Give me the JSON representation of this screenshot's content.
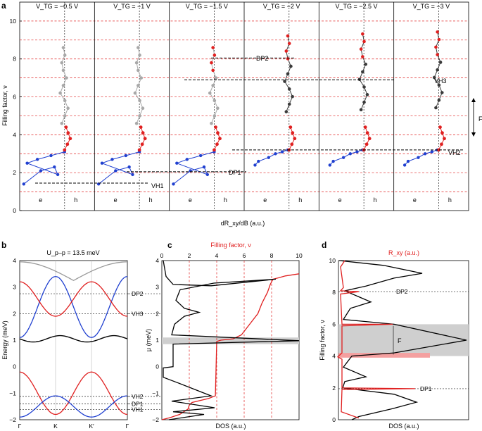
{
  "panel_labels": [
    "a",
    "b",
    "c",
    "d"
  ],
  "chart_data": [
    {
      "type": "scatter",
      "panel": "a",
      "ylabel": "Filling factor, ν",
      "xlabel": "dR_xy/dB (a.u.)",
      "ylim": [
        0,
        11
      ],
      "yticks": [
        "0",
        "2",
        "4",
        "6",
        "8",
        "10"
      ],
      "subplots": [
        {
          "title": "V_TG = −0.5 V",
          "e": "e",
          "h": "h",
          "dark_color": "#a8a8a8"
        },
        {
          "title": "V_TG = −1 V",
          "e": "e",
          "h": "h",
          "dark_color": "#a8a8a8"
        },
        {
          "title": "V_TG = −1.5 V",
          "e": "e",
          "h": "h",
          "dark_color": "#a8a8a8"
        },
        {
          "title": "V_TG = −2 V",
          "e": "e",
          "h": "h",
          "dark_color": "#3a3a3a"
        },
        {
          "title": "V_TG = −2.5 V",
          "e": "e",
          "h": "h",
          "dark_color": "#3a3a3a"
        },
        {
          "title": "V_TG = −3 V",
          "e": "e",
          "h": "h",
          "dark_color": "#3a3a3a"
        }
      ],
      "annotations": [
        "DP2",
        "VH3",
        "VH2",
        "DP1",
        "VH1",
        "F"
      ]
    },
    {
      "type": "line",
      "panel": "b",
      "title": "U_p–p = 13.5 meV",
      "ylabel": "Energy (meV)",
      "ylim": [
        -2,
        4
      ],
      "yticks": [
        "−2",
        "−1",
        "0",
        "1",
        "2",
        "3",
        "4"
      ],
      "xticks": [
        "Γ",
        "K",
        "K′",
        "Γ"
      ],
      "levels": [
        {
          "name": "DP2",
          "value": 2.75
        },
        {
          "name": "VH3",
          "value": 2.0
        },
        {
          "name": "VH2",
          "value": -1.12
        },
        {
          "name": "DP1",
          "value": -1.4
        },
        {
          "name": "VH1",
          "value": -1.62
        }
      ]
    },
    {
      "type": "line",
      "panel": "c",
      "ylabel": "μ (meV)",
      "xlabel": "DOS (a.u.)",
      "toplabel": "Filling factor, ν",
      "ylim": [
        -2,
        4
      ],
      "yticks": [
        "−2",
        "−1",
        "0",
        "1",
        "2",
        "3",
        "4"
      ],
      "topticks": [
        "0",
        "2",
        "4",
        "6",
        "8",
        "10"
      ],
      "red_lines_nu": [
        2,
        4,
        6,
        8
      ],
      "filling_curve": {
        "nu": [
          0,
          0.6,
          1.3,
          1.9,
          2.0,
          2.2,
          3.4,
          3.9,
          4.0,
          4.3,
          5.2,
          5.8,
          6.4,
          7.0,
          7.3,
          7.7,
          7.9,
          8.1,
          8.5,
          9.0,
          10
        ],
        "mu": [
          -2.0,
          -1.92,
          -1.8,
          -1.6,
          -1.45,
          -1.35,
          -1.2,
          -1.1,
          0.95,
          1.0,
          1.05,
          1.2,
          1.6,
          2.0,
          2.4,
          2.8,
          3.1,
          3.3,
          3.35,
          3.42,
          3.5
        ]
      }
    },
    {
      "type": "line",
      "panel": "d",
      "title": "R_xy (a.u.)",
      "ylabel": "Filling factor, ν",
      "xlabel": "DOS (a.u.)",
      "ylim": [
        0,
        10
      ],
      "yticks": [
        "0",
        "2",
        "4",
        "6",
        "8",
        "10"
      ],
      "levels": [
        {
          "name": "DP2",
          "value": 8.05
        },
        {
          "name": "DP1",
          "value": 1.95
        }
      ],
      "shaded_region": [
        4.0,
        6.0
      ],
      "shaded_label": "F"
    }
  ]
}
